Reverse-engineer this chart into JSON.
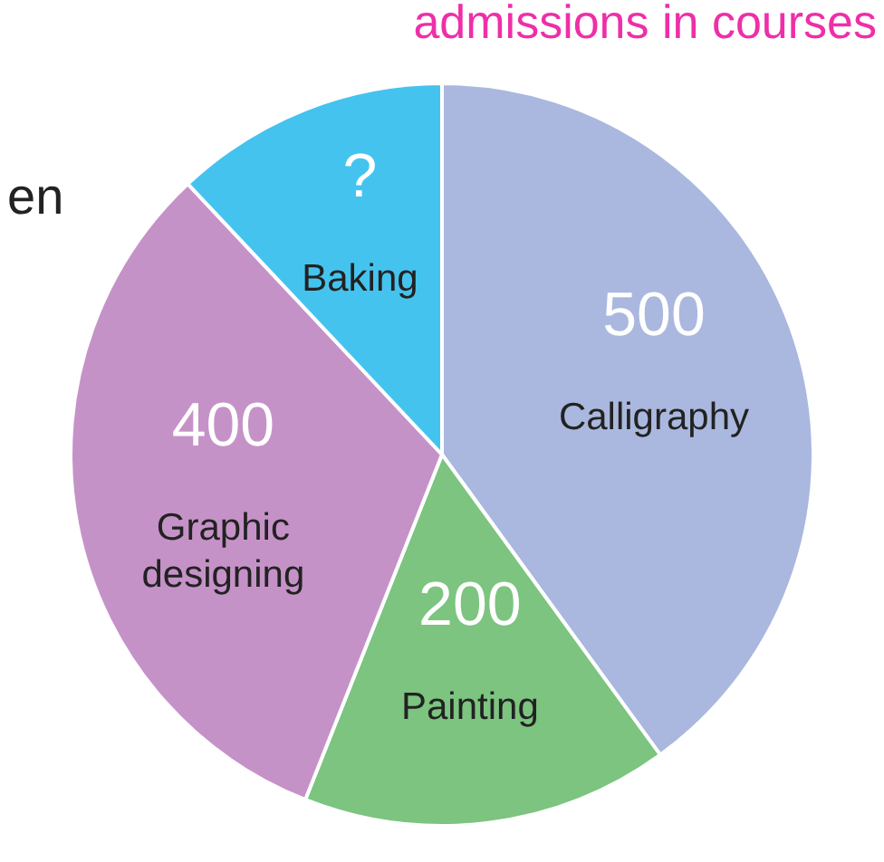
{
  "chart_data": {
    "type": "pie",
    "title": "admissions in courses",
    "categories": [
      "Calligraphy",
      "Painting",
      "Graphic designing",
      "Baking"
    ],
    "values": [
      500,
      200,
      400,
      150
    ],
    "value_labels": [
      "500",
      "200",
      "400",
      "?"
    ],
    "colors": [
      "#aab8df",
      "#7cc47f",
      "#c592c8",
      "#45c3ef"
    ],
    "annotations": [
      "en"
    ],
    "legend": false
  }
}
